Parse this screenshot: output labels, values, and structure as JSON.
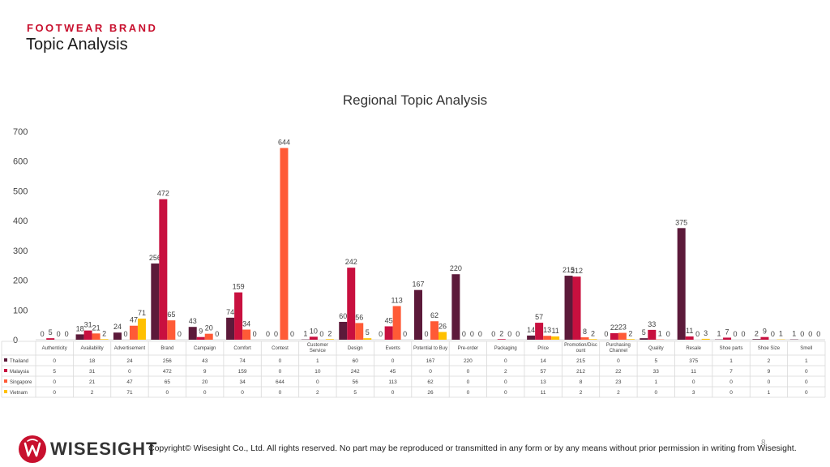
{
  "header": {
    "brand": "FOOTWEAR BRAND",
    "title": "Topic Analysis"
  },
  "colors": {
    "brand_red": "#c8102e",
    "Thailand": "#5c1a3a",
    "Malaysia": "#c8103f",
    "Singapore": "#ff5a36",
    "Vietnam": "#ffc000"
  },
  "chart_data": {
    "type": "bar",
    "title": "Regional Topic Analysis",
    "ylim": [
      0,
      700
    ],
    "yticks": [
      0,
      100,
      200,
      300,
      400,
      500,
      600,
      700
    ],
    "grid": false,
    "legend_placement": "table-bottom",
    "categories": [
      "Authenticity",
      "Availability",
      "Advertisement",
      "Brand",
      "Campaign",
      "Comfort",
      "Contest",
      "Customer Service",
      "Design",
      "Events",
      "Potential to Buy",
      "Pre-order",
      "Packaging",
      "Price",
      "Promotion/Discount",
      "Purchasing Channel",
      "Quality",
      "Resale",
      "Shoe parts",
      "Shoe Size",
      "Smell"
    ],
    "series": [
      {
        "name": "Thailand",
        "values": [
          0,
          18,
          24,
          256,
          43,
          74,
          0,
          1,
          60,
          0,
          167,
          220,
          0,
          14,
          215,
          0,
          5,
          375,
          1,
          2,
          1
        ]
      },
      {
        "name": "Malaysia",
        "values": [
          5,
          31,
          0,
          472,
          9,
          159,
          0,
          10,
          242,
          45,
          0,
          0,
          2,
          57,
          212,
          22,
          33,
          11,
          7,
          9,
          0
        ]
      },
      {
        "name": "Singapore",
        "values": [
          0,
          21,
          47,
          65,
          20,
          34,
          644,
          0,
          56,
          113,
          62,
          0,
          0,
          13,
          8,
          23,
          1,
          0,
          0,
          0,
          0
        ]
      },
      {
        "name": "Vietnam",
        "values": [
          0,
          2,
          71,
          0,
          0,
          0,
          0,
          2,
          5,
          0,
          26,
          0,
          0,
          11,
          2,
          2,
          0,
          3,
          0,
          1,
          0
        ]
      }
    ]
  },
  "footer": {
    "logo_text": "WISESIGHT",
    "copyright": "Copyright©  Wisesight Co., Ltd. All rights reserved. No part may be reproduced or transmitted in any form or by any means without prior permission in writing from Wisesight.",
    "page_number": "8"
  }
}
